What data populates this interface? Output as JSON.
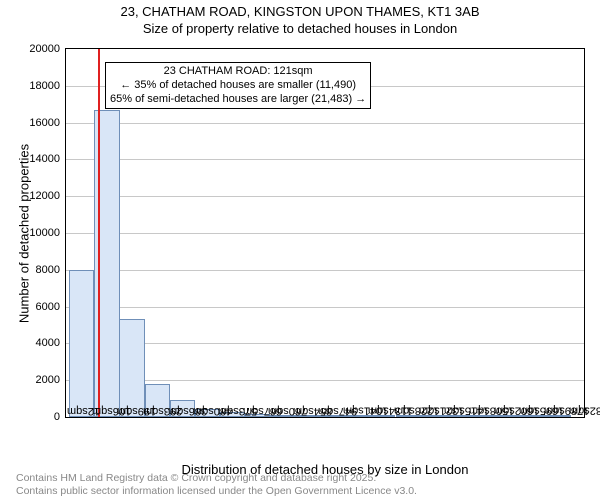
{
  "chart": {
    "type": "histogram",
    "title_line1": "23, CHATHAM ROAD, KINGSTON UPON THAMES, KT1 3AB",
    "title_line2": "Size of property relative to detached houses in London",
    "title_fontsize": 13,
    "x_axis_title": "Distribution of detached houses by size in London",
    "y_axis_title": "Number of detached properties",
    "axis_title_fontsize": 13,
    "tick_fontsize": 11,
    "background_color": "#ffffff",
    "grid_color": "#c8c8c8",
    "border_color": "#000000",
    "bar_fill": "#d9e6f7",
    "bar_border": "#6f8fb8",
    "reference_line_color": "#e02020",
    "reference_position_value": 121,
    "x_min": 0,
    "x_max": 1930,
    "y_min": 0,
    "y_max": 20000,
    "y_ticks": [
      0,
      2000,
      4000,
      6000,
      8000,
      10000,
      12000,
      14000,
      16000,
      18000,
      20000
    ],
    "x_tick_values": [
      12,
      106,
      199,
      293,
      386,
      480,
      573,
      667,
      760,
      854,
      947,
      1041,
      1134,
      1228,
      1321,
      1415,
      1508,
      1602,
      1695,
      1789,
      1882
    ],
    "x_tick_labels": [
      "12sqm",
      "106sqm",
      "199sqm",
      "293sqm",
      "386sqm",
      "480sqm",
      "573sqm",
      "667sqm",
      "760sqm",
      "854sqm",
      "947sqm",
      "1041sqm",
      "1134sqm",
      "1228sqm",
      "1321sqm",
      "1415sqm",
      "1508sqm",
      "1602sqm",
      "1695sqm",
      "1789sqm",
      "1882sqm"
    ],
    "bin_width": 93.5,
    "bins_left": [
      12,
      106,
      199,
      293,
      386,
      480,
      573,
      667,
      760,
      854,
      947,
      1041,
      1134,
      1228,
      1321,
      1415,
      1508,
      1602,
      1695,
      1789
    ],
    "bins_height": [
      8000,
      16700,
      5300,
      1800,
      900,
      450,
      270,
      180,
      130,
      90,
      65,
      48,
      36,
      27,
      21,
      16,
      13,
      10,
      8,
      6
    ],
    "annotation_lines": [
      "23 CHATHAM ROAD: 121sqm",
      "← 35% of detached houses are smaller (11,490)",
      "65% of semi-detached houses are larger (21,483) →"
    ],
    "annotation_fontsize": 11,
    "footer_color": "#888888",
    "footer_line1": "Contains HM Land Registry data © Crown copyright and database right 2025.",
    "footer_line2": "Contains public sector information licensed under the Open Government Licence v3.0."
  }
}
